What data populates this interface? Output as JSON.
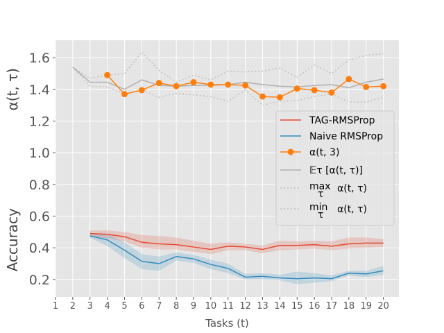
{
  "chart_data": {
    "type": "line",
    "xlabel": "Tasks (t)",
    "ylabel_top": "α(t, τ)",
    "ylabel_bottom": "Accuracy",
    "x_ticks": [
      1,
      2,
      3,
      4,
      5,
      6,
      7,
      8,
      9,
      10,
      11,
      12,
      13,
      14,
      15,
      16,
      17,
      18,
      19,
      20
    ],
    "y_ticks": [
      "0.2",
      "0.4",
      "0.6",
      "0.8",
      "1.0",
      "1.2",
      "1.4",
      "1.6"
    ],
    "xlim": [
      1,
      20.9
    ],
    "ylim": [
      0.09,
      1.71
    ],
    "colors": {
      "tag": "#e24a33",
      "naive": "#348abd",
      "alpha": "#ff7f0e",
      "mean": "#b0b0b0",
      "minmax": "#c0c0c0",
      "grid": "#ffffff",
      "background": "#e5e5e5"
    },
    "series": [
      {
        "name": "TAG-RMSProp",
        "key": "tag",
        "x": [
          3,
          4,
          5,
          6,
          7,
          8,
          9,
          10,
          11,
          12,
          13,
          14,
          15,
          16,
          17,
          18,
          19,
          20
        ],
        "values": [
          0.49,
          0.485,
          0.47,
          0.435,
          0.425,
          0.42,
          0.405,
          0.39,
          0.41,
          0.405,
          0.39,
          0.415,
          0.415,
          0.42,
          0.41,
          0.425,
          0.43,
          0.43
        ],
        "band_low": [
          0.47,
          0.46,
          0.44,
          0.4,
          0.39,
          0.39,
          0.375,
          0.36,
          0.385,
          0.385,
          0.365,
          0.385,
          0.39,
          0.395,
          0.385,
          0.395,
          0.4,
          0.405
        ],
        "band_high": [
          0.51,
          0.51,
          0.5,
          0.48,
          0.475,
          0.465,
          0.445,
          0.425,
          0.435,
          0.425,
          0.415,
          0.445,
          0.44,
          0.445,
          0.44,
          0.465,
          0.465,
          0.455
        ]
      },
      {
        "name": "Naive RMSProp",
        "key": "naive",
        "x": [
          3,
          4,
          5,
          6,
          7,
          8,
          9,
          10,
          11,
          12,
          13,
          14,
          15,
          16,
          17,
          18,
          19,
          20
        ],
        "values": [
          0.475,
          0.45,
          0.385,
          0.315,
          0.3,
          0.345,
          0.33,
          0.295,
          0.27,
          0.215,
          0.22,
          0.21,
          0.205,
          0.21,
          0.205,
          0.24,
          0.235,
          0.255
        ],
        "band_low": [
          0.465,
          0.41,
          0.335,
          0.265,
          0.255,
          0.32,
          0.305,
          0.265,
          0.24,
          0.2,
          0.2,
          0.195,
          0.17,
          0.18,
          0.19,
          0.225,
          0.215,
          0.23
        ],
        "band_high": [
          0.485,
          0.49,
          0.435,
          0.36,
          0.345,
          0.37,
          0.355,
          0.325,
          0.3,
          0.235,
          0.24,
          0.23,
          0.25,
          0.24,
          0.225,
          0.255,
          0.255,
          0.285
        ]
      },
      {
        "name": "α(t, 3)",
        "key": "alpha",
        "markers": true,
        "x": [
          4,
          5,
          6,
          7,
          8,
          9,
          10,
          11,
          12,
          13,
          14,
          15,
          16,
          17,
          18,
          19,
          20
        ],
        "values": [
          1.49,
          1.37,
          1.395,
          1.44,
          1.42,
          1.445,
          1.43,
          1.43,
          1.425,
          1.355,
          1.35,
          1.405,
          1.395,
          1.38,
          1.465,
          1.415,
          1.42
        ]
      },
      {
        "name": "𝔼τ  [α(t, τ)]",
        "key": "mean",
        "x": [
          2,
          3,
          4,
          5,
          6,
          7,
          8,
          9,
          10,
          11,
          12,
          13,
          14,
          15,
          16,
          17,
          18,
          19,
          20
        ],
        "values": [
          1.54,
          1.445,
          1.445,
          1.4,
          1.46,
          1.425,
          1.42,
          1.425,
          1.425,
          1.43,
          1.445,
          1.43,
          1.42,
          1.415,
          1.425,
          1.43,
          1.41,
          1.445,
          1.465
        ]
      },
      {
        "name": "max α(t, τ)",
        "key": "max",
        "dotted": true,
        "x": [
          2,
          3,
          4,
          5,
          6,
          7,
          8,
          9,
          10,
          11,
          12,
          13,
          14,
          15,
          16,
          17,
          18,
          19,
          20
        ],
        "values": [
          1.54,
          1.47,
          1.49,
          1.5,
          1.635,
          1.52,
          1.445,
          1.49,
          1.46,
          1.515,
          1.51,
          1.515,
          1.535,
          1.475,
          1.555,
          1.5,
          1.585,
          1.615,
          1.625
        ]
      },
      {
        "name": "min α(t, τ)",
        "key": "min",
        "dotted": true,
        "x": [
          2,
          3,
          4,
          5,
          6,
          7,
          8,
          9,
          10,
          11,
          12,
          13,
          14,
          15,
          16,
          17,
          18,
          19,
          20
        ],
        "values": [
          1.54,
          1.42,
          1.415,
          1.375,
          1.395,
          1.35,
          1.375,
          1.365,
          1.355,
          1.325,
          1.395,
          1.3,
          1.325,
          1.33,
          1.355,
          1.37,
          1.32,
          1.32,
          1.35
        ]
      }
    ],
    "legend": {
      "position": "center-right",
      "entries": [
        {
          "key": "tag",
          "label": "TAG-RMSProp"
        },
        {
          "key": "naive",
          "label": "Naive RMSProp"
        },
        {
          "key": "alpha",
          "label": "α(t, 3)"
        },
        {
          "key": "mean",
          "label": "𝔼τ  [α(t, τ)]"
        },
        {
          "key": "max",
          "label_op": "max",
          "label_sub": "τ",
          "label_rest": "α(t, τ)"
        },
        {
          "key": "min",
          "label_op": "min",
          "label_sub": "τ",
          "label_rest": "α(t, τ)"
        }
      ]
    }
  }
}
